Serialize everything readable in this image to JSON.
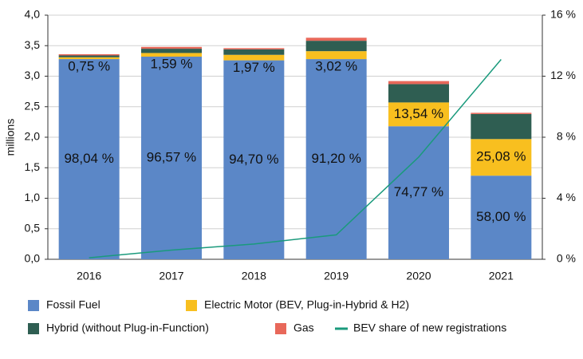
{
  "chart_data": {
    "type": "bar",
    "stacked": true,
    "ylabel": "millions",
    "categories": [
      "2016",
      "2017",
      "2018",
      "2019",
      "2020",
      "2021"
    ],
    "series": [
      {
        "name": "Fossil Fuel",
        "color": "#5b87c7",
        "values": [
          3.28,
          3.32,
          3.26,
          3.28,
          2.18,
          1.37
        ],
        "share_labels": [
          "98,04 %",
          "96,57 %",
          "94,70 %",
          "91,20 %",
          "74,77 %",
          "58,00 %"
        ]
      },
      {
        "name": "Electric Motor (BEV, Plug-in-Hybrid & H2)",
        "color": "#f8bf1f",
        "values": [
          0.03,
          0.06,
          0.09,
          0.13,
          0.39,
          0.6
        ],
        "share_labels": [
          "0,75 %",
          "1,59 %",
          "1,97 %",
          "3,02 %",
          "13,54 %",
          "25,08  %"
        ]
      },
      {
        "name": "Hybrid (without Plug-in-Function)",
        "color": "#2f5e52",
        "values": [
          0.03,
          0.07,
          0.09,
          0.17,
          0.3,
          0.41
        ]
      },
      {
        "name": "Gas",
        "color": "#e8685a",
        "values": [
          0.02,
          0.03,
          0.02,
          0.05,
          0.05,
          0.02
        ]
      },
      {
        "name": "BEV share of new registrations",
        "type": "line",
        "axis": "y2",
        "color": "#1a9a7c",
        "values": [
          0.1,
          0.6,
          1.0,
          1.6,
          6.7,
          13.1
        ]
      }
    ],
    "ylim": [
      0,
      4
    ],
    "yticks": [
      {
        "value": 0,
        "label": "0,0"
      },
      {
        "value": 0.5,
        "label": "0,5"
      },
      {
        "value": 1,
        "label": "1,0"
      },
      {
        "value": 1.5,
        "label": "1,5"
      },
      {
        "value": 2,
        "label": "2,0"
      },
      {
        "value": 2.5,
        "label": "2,5"
      },
      {
        "value": 3,
        "label": "3,0"
      },
      {
        "value": 3.5,
        "label": "3,5"
      },
      {
        "value": 4,
        "label": "4,0"
      }
    ],
    "y2lim": [
      0,
      16
    ],
    "y2ticks": [
      {
        "value": 0,
        "label": "0 %"
      },
      {
        "value": 4,
        "label": "4 %"
      },
      {
        "value": 8,
        "label": "8 %"
      },
      {
        "value": 12,
        "label": "12 %"
      },
      {
        "value": 16,
        "label": "16 %"
      }
    ],
    "grid": true
  }
}
